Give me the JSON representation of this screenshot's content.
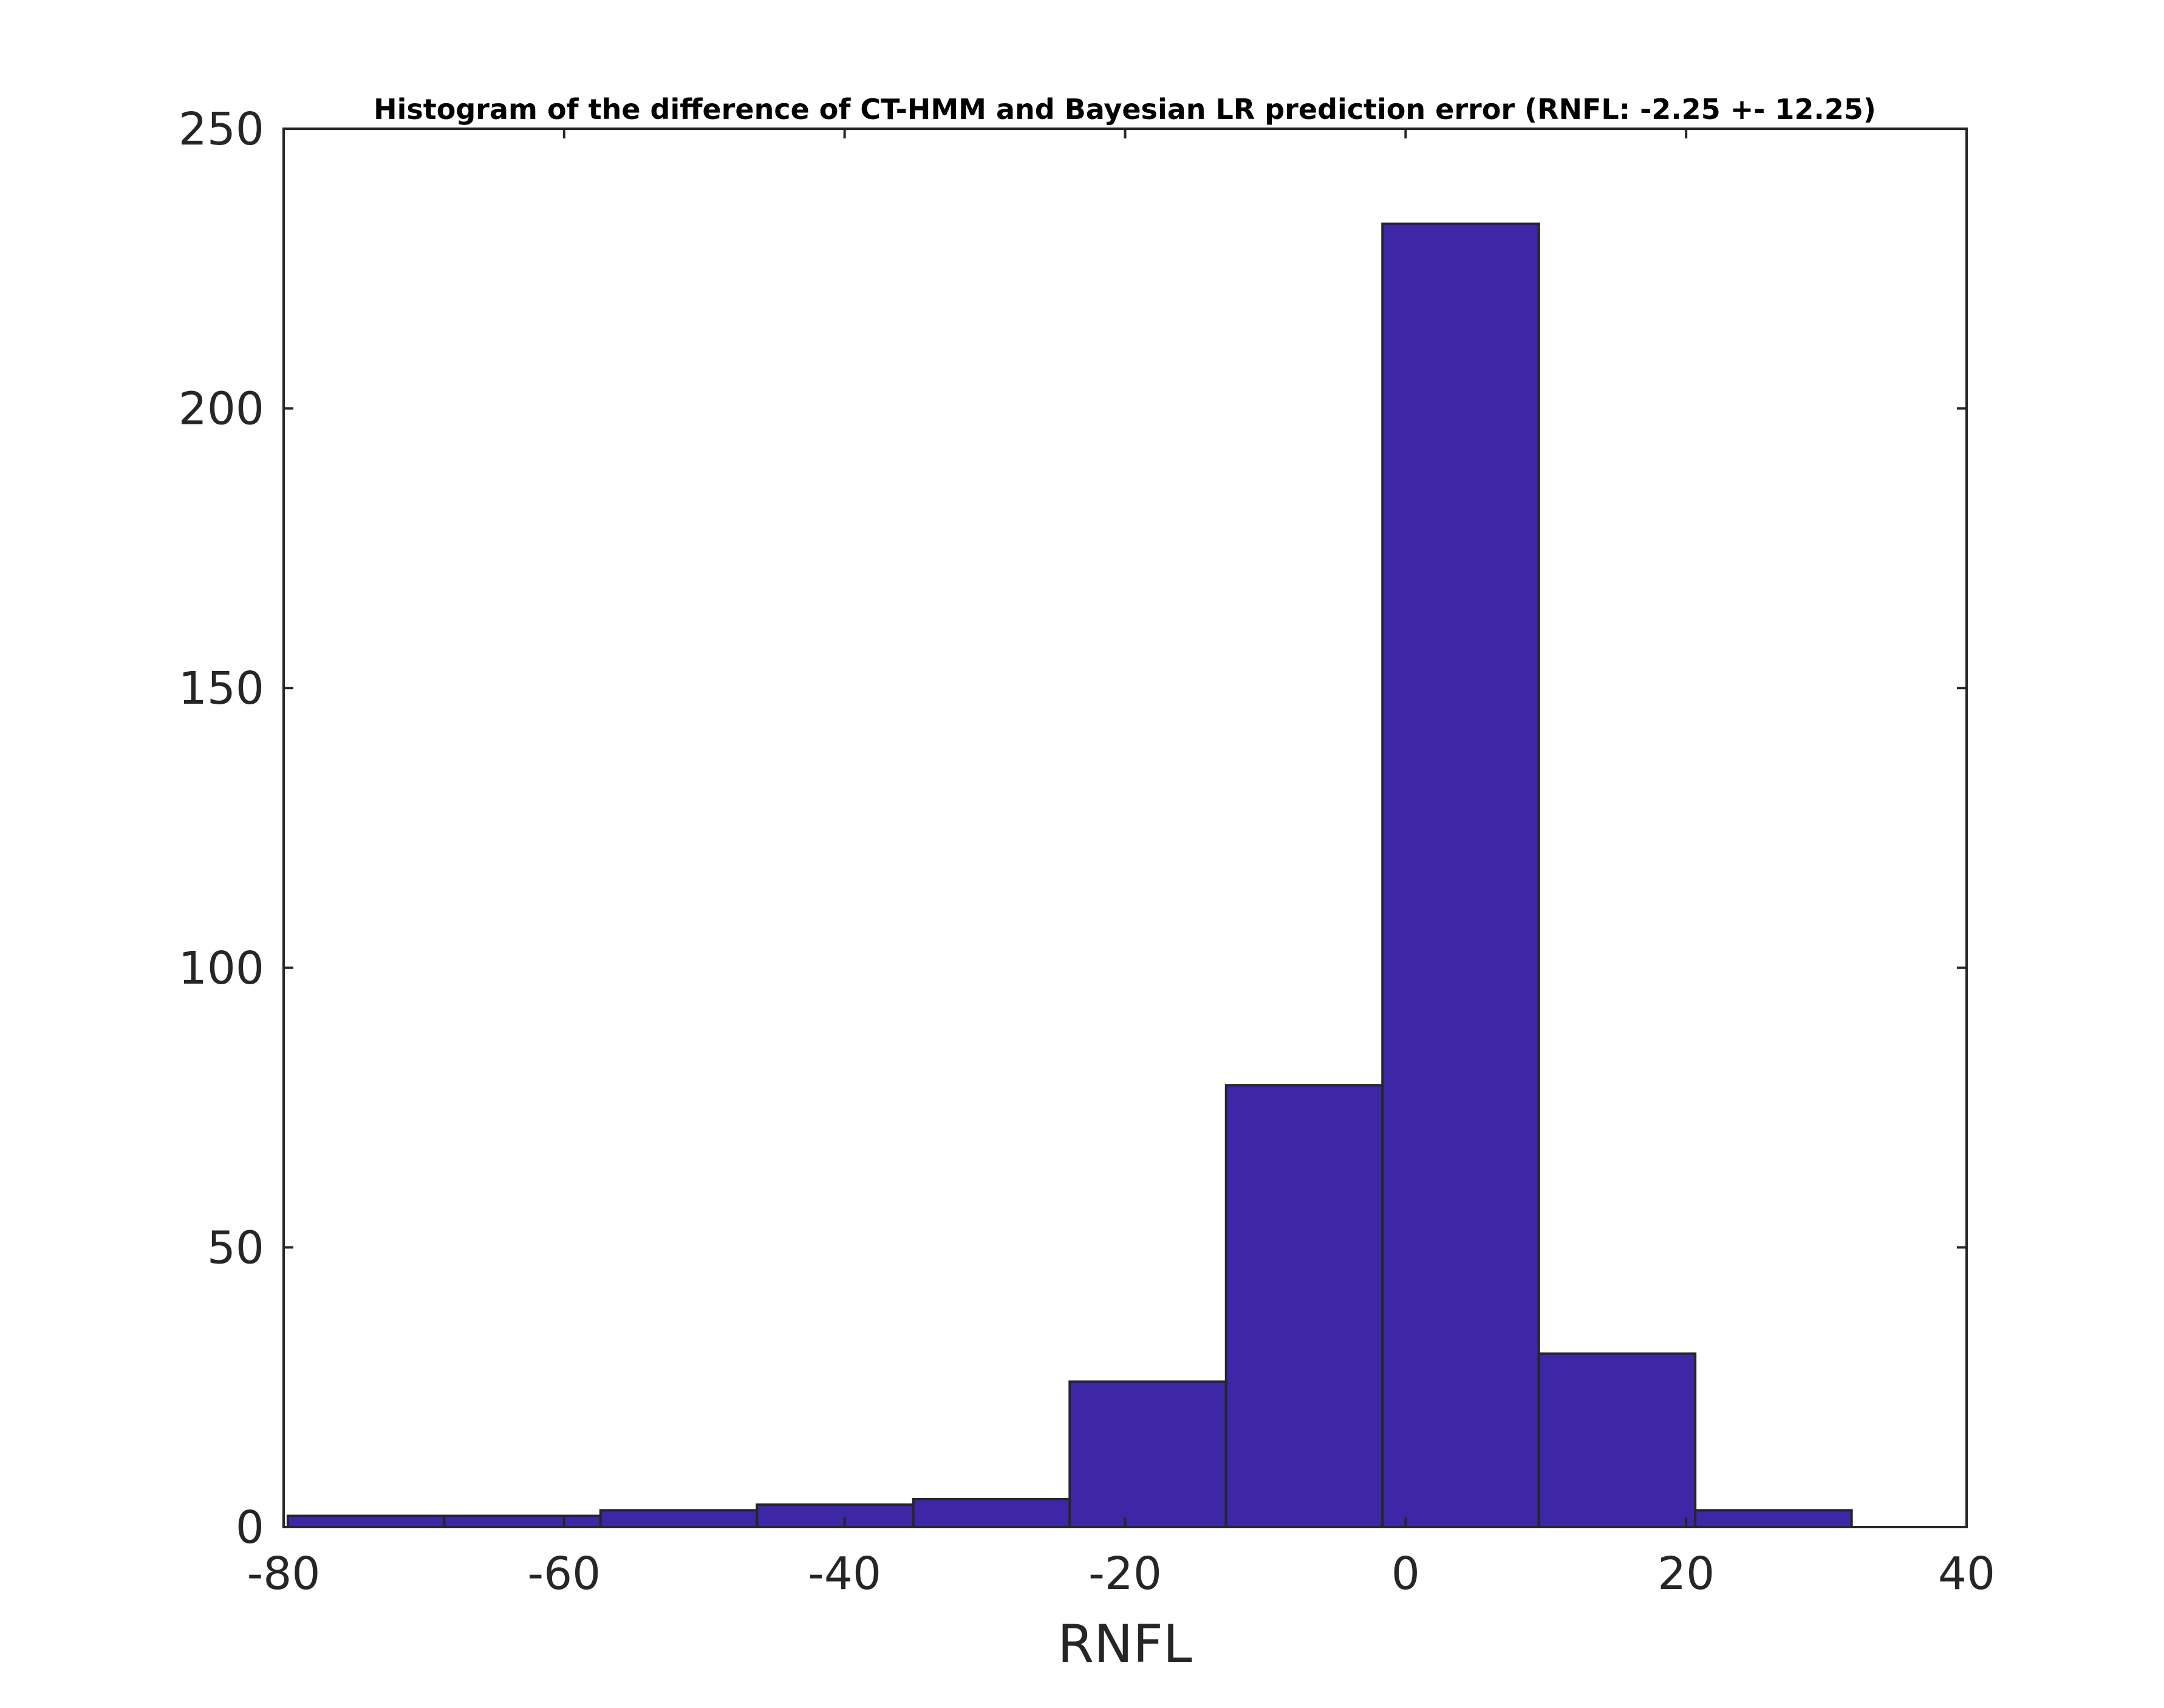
{
  "chart_data": {
    "type": "bar",
    "title": "Histogram of the difference of CT-HMM and Bayesian LR prediction error (RNFL: -2.25 +- 12.25)",
    "xlabel": "RNFL",
    "ylabel": "",
    "xlim": [
      -80,
      40
    ],
    "ylim": [
      0,
      250
    ],
    "xticks": [
      -80,
      -60,
      -40,
      -20,
      0,
      20,
      40
    ],
    "yticks": [
      0,
      50,
      100,
      150,
      200,
      250
    ],
    "bin_edges": [
      -79.7,
      -68.55,
      -57.4,
      -46.25,
      -35.1,
      -23.95,
      -12.8,
      -1.65,
      9.5,
      20.65,
      31.8
    ],
    "values": [
      2,
      2,
      3,
      4,
      5,
      26,
      79,
      233,
      31,
      3
    ],
    "bar_color": "#3d27a7",
    "edge_color": "#262626",
    "grid": false,
    "legend": "none"
  }
}
